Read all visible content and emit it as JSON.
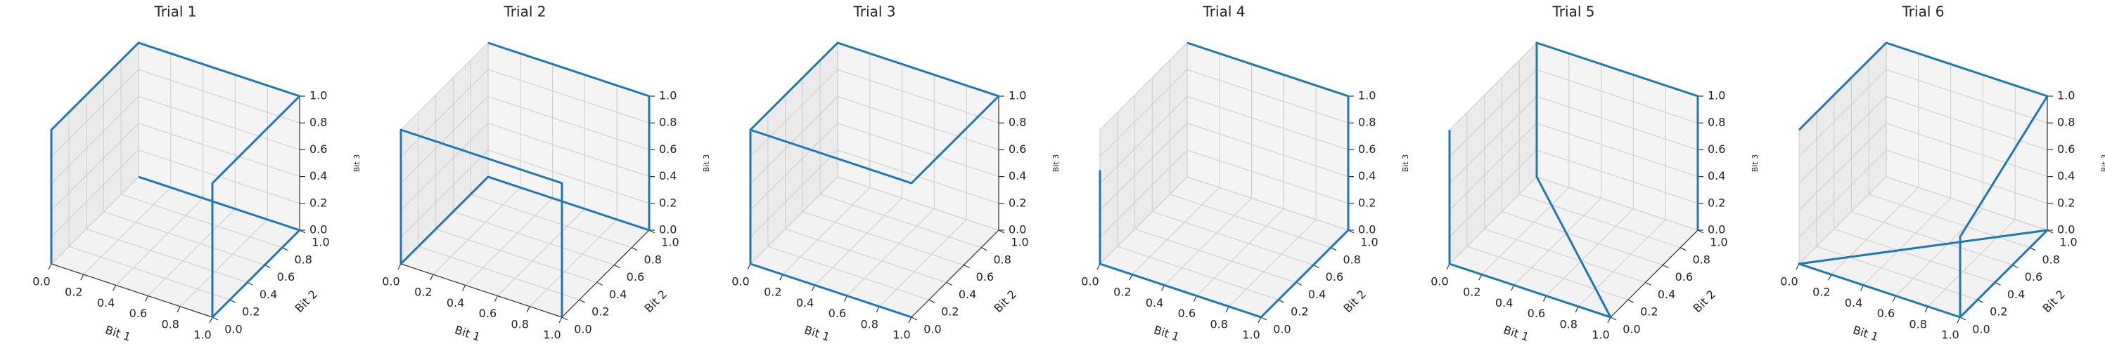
{
  "chart_data": [
    {
      "type": "line3d",
      "title": "Trial 1",
      "xlabel": "Bit 1",
      "ylabel": "Bit 2",
      "zlabel": "Bit 3",
      "color": "#1f77b4",
      "grid": true,
      "x": [
        0,
        0,
        0,
        1,
        1,
        1,
        1,
        0
      ],
      "y": [
        0,
        0,
        1,
        1,
        0,
        0,
        1,
        1
      ],
      "z": [
        0,
        1,
        1,
        1,
        1,
        0,
        0,
        0
      ],
      "xlim": [
        0,
        1
      ],
      "ylim": [
        0,
        1
      ],
      "zlim": [
        0,
        1
      ],
      "xticks": [
        {
          "value": 0,
          "label": "0.0"
        },
        0.2,
        0.4,
        0.6,
        0.8,
        {
          "value": 1,
          "label": "1.0"
        }
      ],
      "yticks": [
        {
          "value": 0,
          "label": "0.0"
        },
        0.2,
        0.4,
        0.6,
        0.8,
        {
          "value": 1,
          "label": "1.0"
        }
      ],
      "zticks": [
        {
          "value": 0,
          "label": "0.0"
        },
        0.2,
        0.4,
        0.6,
        0.8,
        {
          "value": 1,
          "label": "1.0"
        }
      ]
    },
    {
      "type": "line3d",
      "title": "Trial 2",
      "xlabel": "Bit 1",
      "ylabel": "Bit 2",
      "zlabel": "Bit 3",
      "color": "#1f77b4",
      "grid": true,
      "x": [
        0,
        1,
        1,
        0,
        0,
        0,
        1,
        1
      ],
      "y": [
        1,
        1,
        1,
        1,
        0,
        0,
        0,
        0
      ],
      "z": [
        1,
        1,
        0,
        0,
        0,
        1,
        1,
        0
      ],
      "xlim": [
        0,
        1
      ],
      "ylim": [
        0,
        1
      ],
      "zlim": [
        0,
        1
      ],
      "xticks": [
        {
          "value": 0,
          "label": "0.0"
        },
        0.2,
        0.4,
        0.6,
        0.8,
        {
          "value": 1,
          "label": "1.0"
        }
      ],
      "yticks": [
        {
          "value": 0,
          "label": "0.0"
        },
        0.2,
        0.4,
        0.6,
        0.8,
        {
          "value": 1,
          "label": "1.0"
        }
      ],
      "zticks": [
        {
          "value": 0,
          "label": "0.0"
        },
        0.2,
        0.4,
        0.6,
        0.8,
        {
          "value": 1,
          "label": "1.0"
        }
      ]
    },
    {
      "type": "line3d",
      "title": "Trial 3",
      "xlabel": "Bit 1",
      "ylabel": "Bit 2",
      "zlabel": "Bit 3",
      "color": "#1f77b4",
      "grid": true,
      "x": [
        1,
        0,
        0,
        0,
        1,
        1,
        0,
        0
      ],
      "y": [
        0,
        0,
        0,
        1,
        1,
        0,
        0,
        0
      ],
      "z": [
        0,
        0,
        1,
        1,
        1,
        1,
        1,
        0
      ],
      "xlim": [
        0,
        1
      ],
      "ylim": [
        0,
        1
      ],
      "zlim": [
        0,
        1
      ],
      "xticks": [
        {
          "value": 0,
          "label": "0.0"
        },
        0.2,
        0.4,
        0.6,
        0.8,
        {
          "value": 1,
          "label": "1.0"
        }
      ],
      "yticks": [
        {
          "value": 0,
          "label": "0.0"
        },
        0.2,
        0.4,
        0.6,
        0.8,
        {
          "value": 1,
          "label": "1.0"
        }
      ],
      "zticks": [
        {
          "value": 0,
          "label": "0.0"
        },
        0.2,
        0.4,
        0.6,
        0.8,
        {
          "value": 1,
          "label": "1.0"
        }
      ]
    },
    {
      "type": "line3d",
      "title": "Trial 4",
      "xlabel": "Bit 1",
      "ylabel": "Bit 2",
      "zlabel": "Bit 3",
      "color": "#1f77b4",
      "grid": true,
      "x": [
        0,
        0,
        0,
        1,
        1,
        1,
        1,
        0
      ],
      "y": [
        0,
        0,
        0,
        0,
        1,
        1,
        1,
        1
      ],
      "z": [
        0.7,
        0.4,
        0,
        0,
        0,
        1,
        1,
        1
      ],
      "xlim": [
        0,
        1
      ],
      "ylim": [
        0,
        1
      ],
      "zlim": [
        0,
        1
      ],
      "xticks": [
        {
          "value": 0,
          "label": "0.0"
        },
        0.2,
        0.4,
        0.6,
        0.8,
        {
          "value": 1,
          "label": "1.0"
        }
      ],
      "yticks": [
        {
          "value": 0,
          "label": "0.0"
        },
        0.2,
        0.4,
        0.6,
        0.8,
        {
          "value": 1,
          "label": "1.0"
        }
      ],
      "zticks": [
        {
          "value": 0,
          "label": "0.0"
        },
        0.2,
        0.4,
        0.6,
        0.8,
        {
          "value": 1,
          "label": "1.0"
        }
      ]
    },
    {
      "type": "line3d",
      "title": "Trial 5",
      "xlabel": "Bit 1",
      "ylabel": "Bit 2",
      "zlabel": "Bit 3",
      "color": "#1f77b4",
      "grid": true,
      "x": [
        0,
        0,
        1,
        1,
        0,
        0,
        1,
        1
      ],
      "y": [
        0,
        0,
        0,
        0,
        1,
        1,
        1,
        1
      ],
      "z": [
        1,
        0,
        0,
        0,
        0,
        1,
        1,
        0
      ],
      "xlim": [
        0,
        1
      ],
      "ylim": [
        0,
        1
      ],
      "zlim": [
        0,
        1
      ],
      "xticks": [
        {
          "value": 0,
          "label": "0.0"
        },
        0.2,
        0.4,
        0.6,
        0.8,
        {
          "value": 1,
          "label": "1.0"
        }
      ],
      "yticks": [
        {
          "value": 0,
          "label": "0.0"
        },
        0.2,
        0.4,
        0.6,
        0.8,
        {
          "value": 1,
          "label": "1.0"
        }
      ],
      "zticks": [
        {
          "value": 0,
          "label": "0.0"
        },
        0.2,
        0.4,
        0.6,
        0.8,
        {
          "value": 1,
          "label": "1.0"
        }
      ]
    },
    {
      "type": "line3d",
      "title": "Trial 6",
      "xlabel": "Bit 1",
      "ylabel": "Bit 2",
      "zlabel": "Bit 3",
      "color": "#1f77b4",
      "grid": true,
      "x": [
        0,
        0,
        1,
        1,
        1,
        1,
        0,
        1
      ],
      "y": [
        0,
        1,
        1,
        0,
        0,
        1,
        0,
        0
      ],
      "z": [
        1,
        1,
        1,
        0.6,
        0,
        0,
        0,
        0
      ],
      "xlim": [
        0,
        1
      ],
      "ylim": [
        0,
        1
      ],
      "zlim": [
        0,
        1
      ],
      "xticks": [
        {
          "value": 0,
          "label": "0.0"
        },
        0.2,
        0.4,
        0.6,
        0.8,
        {
          "value": 1,
          "label": "1.0"
        }
      ],
      "yticks": [
        {
          "value": 0,
          "label": "0.0"
        },
        0.2,
        0.4,
        0.6,
        0.8,
        {
          "value": 1,
          "label": "1.0"
        }
      ],
      "zticks": [
        {
          "value": 0,
          "label": "0.0"
        },
        0.2,
        0.4,
        0.6,
        0.8,
        {
          "value": 1,
          "label": "1.0"
        }
      ]
    }
  ]
}
